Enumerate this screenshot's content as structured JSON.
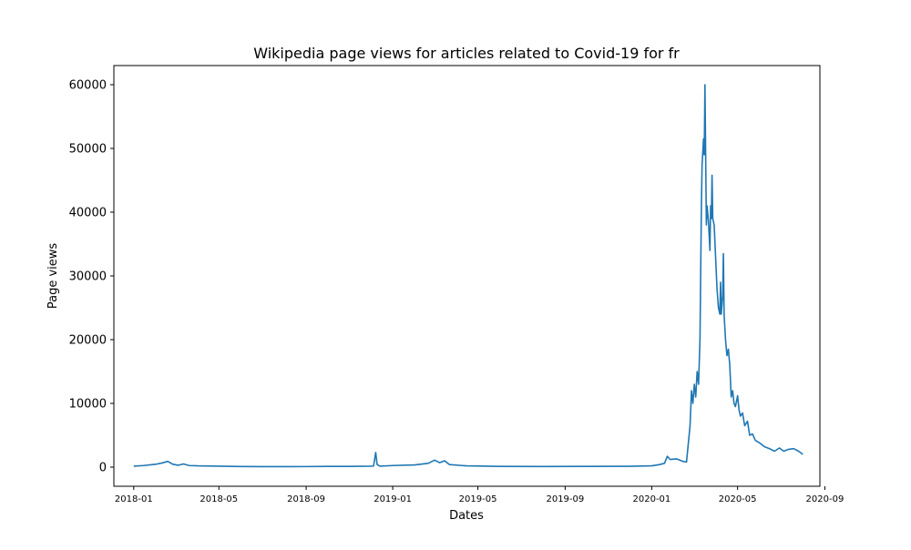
{
  "chart_data": {
    "type": "line",
    "title": "Wikipedia page views for articles related to Covid-19 for fr",
    "xlabel": "Dates",
    "ylabel": "Page views",
    "grid": false,
    "legend": "none",
    "line_color": "#1f77b4",
    "xlim": [
      "2017-12-04",
      "2020-08-25"
    ],
    "ylim": [
      -3000,
      63000
    ],
    "xticks": [
      "2018-01",
      "2018-05",
      "2018-09",
      "2019-01",
      "2019-05",
      "2019-09",
      "2020-01",
      "2020-05",
      "2020-09"
    ],
    "yticks": [
      0,
      10000,
      20000,
      30000,
      40000,
      50000,
      60000
    ],
    "series": [
      {
        "points": [
          [
            "2018-01-01",
            150
          ],
          [
            "2018-01-15",
            250
          ],
          [
            "2018-02-01",
            450
          ],
          [
            "2018-02-10",
            650
          ],
          [
            "2018-02-18",
            900
          ],
          [
            "2018-02-25",
            450
          ],
          [
            "2018-03-05",
            300
          ],
          [
            "2018-03-12",
            500
          ],
          [
            "2018-03-20",
            250
          ],
          [
            "2018-04-01",
            200
          ],
          [
            "2018-05-01",
            150
          ],
          [
            "2018-06-01",
            100
          ],
          [
            "2018-07-01",
            80
          ],
          [
            "2018-08-01",
            80
          ],
          [
            "2018-09-01",
            90
          ],
          [
            "2018-10-01",
            110
          ],
          [
            "2018-11-01",
            120
          ],
          [
            "2018-12-01",
            150
          ],
          [
            "2018-12-05",
            180
          ],
          [
            "2018-12-08",
            2300
          ],
          [
            "2018-12-10",
            400
          ],
          [
            "2018-12-14",
            150
          ],
          [
            "2019-01-01",
            250
          ],
          [
            "2019-02-01",
            350
          ],
          [
            "2019-02-20",
            600
          ],
          [
            "2019-03-01",
            1100
          ],
          [
            "2019-03-08",
            700
          ],
          [
            "2019-03-15",
            1000
          ],
          [
            "2019-03-22",
            400
          ],
          [
            "2019-04-15",
            200
          ],
          [
            "2019-06-01",
            120
          ],
          [
            "2019-08-01",
            100
          ],
          [
            "2019-10-01",
            120
          ],
          [
            "2019-12-01",
            130
          ],
          [
            "2020-01-01",
            200
          ],
          [
            "2020-01-12",
            400
          ],
          [
            "2020-01-19",
            600
          ],
          [
            "2020-01-23",
            1700
          ],
          [
            "2020-01-27",
            1200
          ],
          [
            "2020-02-05",
            1300
          ],
          [
            "2020-02-14",
            900
          ],
          [
            "2020-02-19",
            800
          ],
          [
            "2020-02-24",
            6500
          ],
          [
            "2020-02-26",
            12000
          ],
          [
            "2020-02-28",
            10000
          ],
          [
            "2020-03-01",
            13000
          ],
          [
            "2020-03-03",
            11000
          ],
          [
            "2020-03-05",
            15000
          ],
          [
            "2020-03-07",
            13000
          ],
          [
            "2020-03-09",
            20000
          ],
          [
            "2020-03-11",
            41000
          ],
          [
            "2020-03-12",
            47500
          ],
          [
            "2020-03-14",
            51500
          ],
          [
            "2020-03-15",
            49000
          ],
          [
            "2020-03-16",
            60000
          ],
          [
            "2020-03-17",
            49000
          ],
          [
            "2020-03-18",
            38000
          ],
          [
            "2020-03-19",
            41000
          ],
          [
            "2020-03-21",
            38500
          ],
          [
            "2020-03-23",
            34000
          ],
          [
            "2020-03-24",
            41000
          ],
          [
            "2020-03-25",
            39000
          ],
          [
            "2020-03-26",
            45800
          ],
          [
            "2020-03-27",
            39000
          ],
          [
            "2020-03-29",
            38000
          ],
          [
            "2020-03-31",
            33000
          ],
          [
            "2020-04-02",
            28000
          ],
          [
            "2020-04-04",
            25000
          ],
          [
            "2020-04-06",
            24000
          ],
          [
            "2020-04-07",
            29000
          ],
          [
            "2020-04-08",
            24000
          ],
          [
            "2020-04-10",
            27000
          ],
          [
            "2020-04-11",
            33500
          ],
          [
            "2020-04-12",
            24000
          ],
          [
            "2020-04-14",
            20000
          ],
          [
            "2020-04-16",
            17500
          ],
          [
            "2020-04-18",
            18500
          ],
          [
            "2020-04-20",
            16000
          ],
          [
            "2020-04-22",
            11000
          ],
          [
            "2020-04-24",
            12000
          ],
          [
            "2020-04-26",
            10000
          ],
          [
            "2020-04-28",
            9500
          ],
          [
            "2020-05-01",
            11200
          ],
          [
            "2020-05-03",
            9000
          ],
          [
            "2020-05-05",
            8000
          ],
          [
            "2020-05-08",
            8500
          ],
          [
            "2020-05-11",
            6500
          ],
          [
            "2020-05-15",
            7200
          ],
          [
            "2020-05-18",
            5000
          ],
          [
            "2020-05-22",
            5200
          ],
          [
            "2020-05-26",
            4200
          ],
          [
            "2020-06-01",
            3800
          ],
          [
            "2020-06-08",
            3200
          ],
          [
            "2020-06-15",
            2900
          ],
          [
            "2020-06-22",
            2500
          ],
          [
            "2020-06-29",
            3000
          ],
          [
            "2020-07-05",
            2500
          ],
          [
            "2020-07-12",
            2800
          ],
          [
            "2020-07-19",
            2900
          ],
          [
            "2020-07-26",
            2500
          ],
          [
            "2020-08-01",
            2000
          ]
        ]
      }
    ]
  }
}
